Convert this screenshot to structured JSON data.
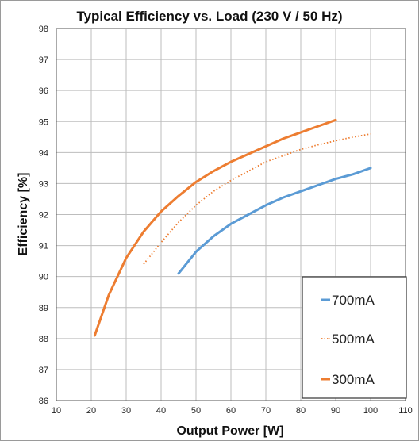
{
  "chart_data": {
    "type": "line",
    "title": "Typical Efficiency vs. Load (230 V / 50 Hz)",
    "xlabel": "Output Power [W]",
    "ylabel": "Efficiency [%]",
    "xlim": [
      10,
      110
    ],
    "ylim": [
      86,
      98
    ],
    "xticks": [
      10,
      20,
      30,
      40,
      50,
      60,
      70,
      80,
      90,
      100,
      110
    ],
    "yticks": [
      86,
      87,
      88,
      89,
      90,
      91,
      92,
      93,
      94,
      95,
      96,
      97,
      98
    ],
    "grid": true,
    "legend_position": "bottom-right",
    "series": [
      {
        "name": "700mA",
        "color": "#5b9bd5",
        "dash": "solid",
        "x": [
          45,
          50,
          55,
          60,
          65,
          70,
          75,
          80,
          85,
          90,
          95,
          100
        ],
        "y": [
          90.1,
          90.8,
          91.3,
          91.7,
          92.0,
          92.3,
          92.55,
          92.75,
          92.95,
          93.15,
          93.3,
          93.5
        ]
      },
      {
        "name": "500mA",
        "color": "#ed7d31",
        "dash": "dotted",
        "x": [
          35,
          40,
          45,
          50,
          55,
          60,
          65,
          70,
          75,
          80,
          85,
          90,
          95,
          100
        ],
        "y": [
          90.4,
          91.1,
          91.75,
          92.3,
          92.75,
          93.1,
          93.4,
          93.7,
          93.9,
          94.1,
          94.25,
          94.38,
          94.5,
          94.6
        ]
      },
      {
        "name": "300mA",
        "color": "#ed7d31",
        "dash": "solid",
        "x": [
          21,
          25,
          30,
          35,
          40,
          45,
          50,
          55,
          60,
          65,
          70,
          75,
          80,
          85,
          90
        ],
        "y": [
          88.1,
          89.4,
          90.6,
          91.45,
          92.1,
          92.6,
          93.05,
          93.4,
          93.7,
          93.95,
          94.2,
          94.45,
          94.65,
          94.85,
          95.05
        ]
      }
    ]
  }
}
